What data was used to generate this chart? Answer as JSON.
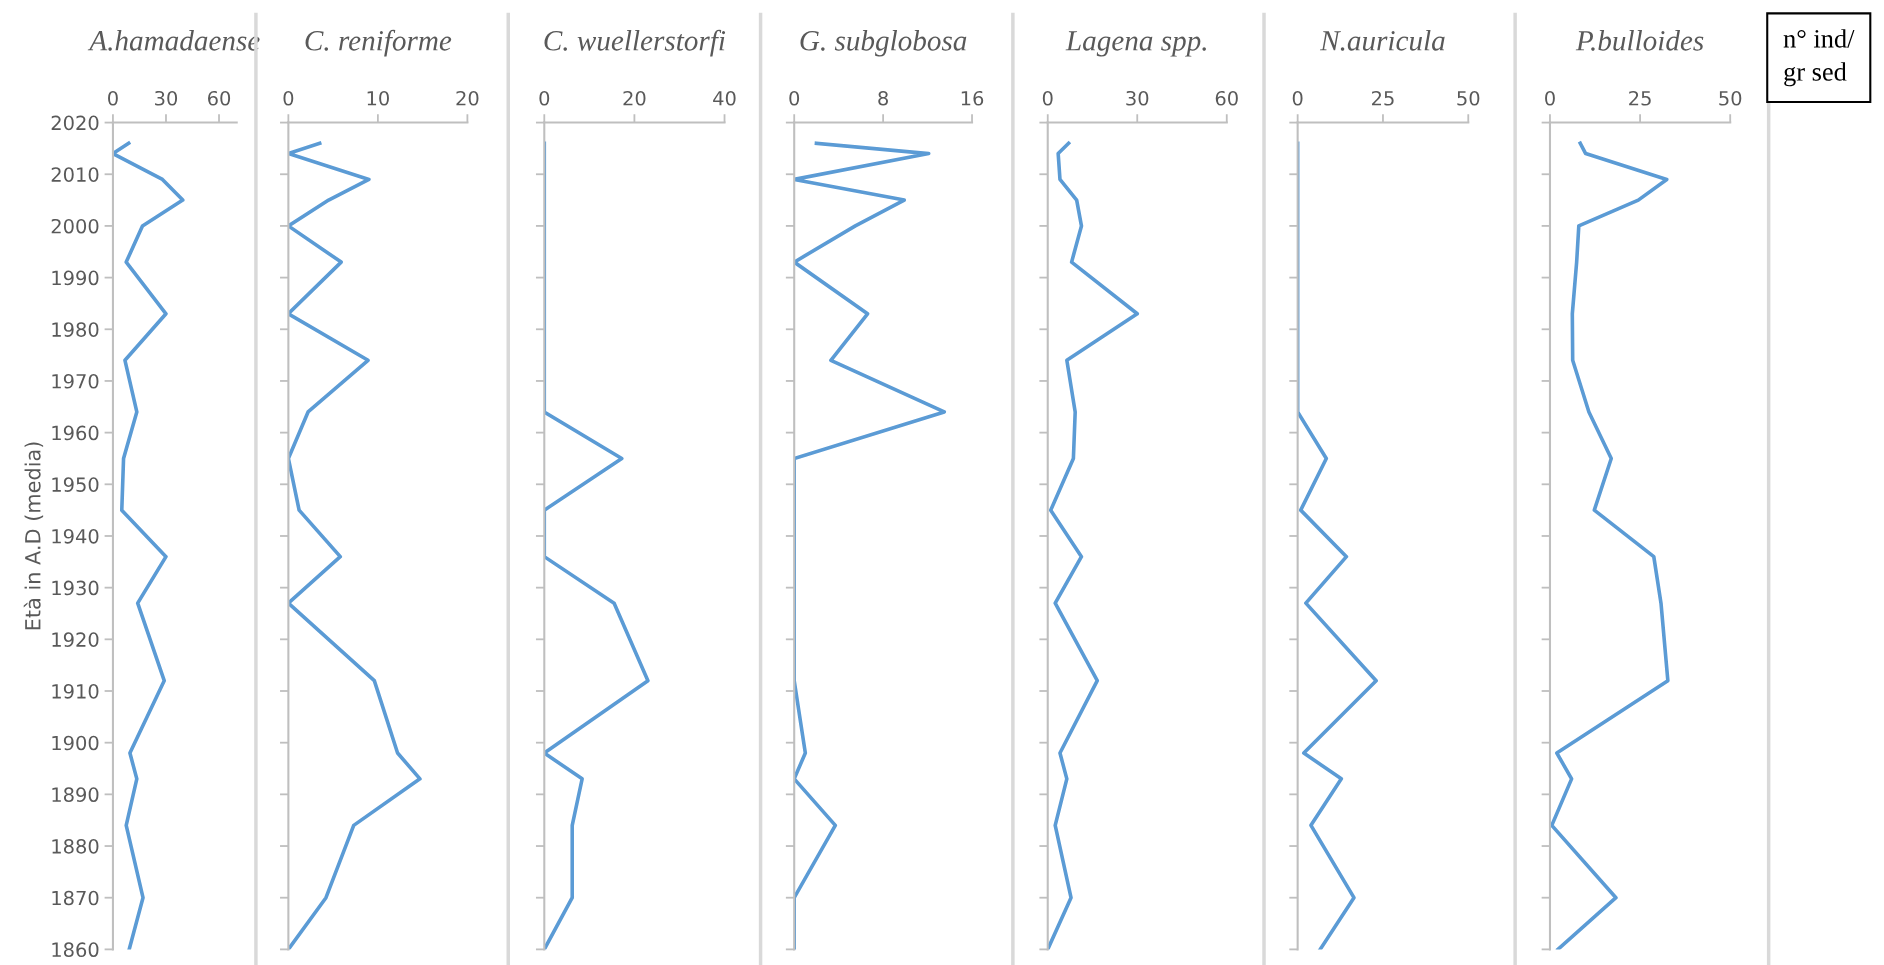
{
  "chart_data": [
    {
      "type": "line",
      "orientation": "horizontal",
      "title": "A.hamadaense",
      "ylabel": "Età in A.D (media)",
      "x": [
        2016,
        2014,
        2009,
        2005,
        2000,
        1993,
        1983,
        1974,
        1964,
        1955,
        1945,
        1936,
        1927,
        1912,
        1898,
        1893,
        1884,
        1870,
        1860
      ],
      "series": [
        {
          "color": "#5b9bd5",
          "values": [
            8.9,
            0,
            28,
            39.5,
            16.7,
            7.5,
            30,
            6.8,
            13.5,
            6,
            5,
            30,
            14,
            29,
            9.6,
            13.5,
            7.5,
            17,
            9.2
          ]
        }
      ],
      "xlim": [
        0,
        70
      ],
      "xticks": [
        0,
        30,
        60
      ],
      "ylim": [
        1860,
        2020
      ],
      "yticks": [
        1860,
        1870,
        1880,
        1890,
        1900,
        1910,
        1920,
        1930,
        1940,
        1950,
        1960,
        1970,
        1980,
        1990,
        2000,
        2010,
        2020
      ],
      "grid": false
    },
    {
      "type": "line",
      "orientation": "horizontal",
      "title": "C. reniforme",
      "x": [
        2016,
        2014,
        2009,
        2005,
        2000,
        1993,
        1983,
        1974,
        1964,
        1955,
        1945,
        1936,
        1927,
        1912,
        1898,
        1893,
        1884,
        1870,
        1860
      ],
      "series": [
        {
          "color": "#5b9bd5",
          "values": [
            3.5,
            0,
            9,
            4.5,
            0,
            5.9,
            0,
            8.9,
            2.2,
            0,
            1.2,
            5.8,
            0,
            9.6,
            12.2,
            14.7,
            7.3,
            4.2,
            0
          ]
        }
      ],
      "xlim": [
        0,
        20
      ],
      "xticks": [
        0,
        10,
        20
      ],
      "ylim": [
        1860,
        2020
      ],
      "yticks": [
        1860,
        1870,
        1880,
        1890,
        1900,
        1910,
        1920,
        1930,
        1940,
        1950,
        1960,
        1970,
        1980,
        1990,
        2000,
        2010,
        2020
      ],
      "tick_labels": "x",
      "grid": false
    },
    {
      "type": "line",
      "orientation": "horizontal",
      "title": "C. wuellerstorfi",
      "x": [
        2016,
        2014,
        2009,
        2005,
        2000,
        1993,
        1983,
        1974,
        1964,
        1955,
        1945,
        1936,
        1927,
        1912,
        1898,
        1893,
        1884,
        1870,
        1860
      ],
      "series": [
        {
          "color": "#5b9bd5",
          "values": [
            0,
            0,
            0,
            0,
            0,
            0,
            0,
            0,
            0,
            17.2,
            0,
            0,
            15.5,
            23,
            0,
            8.4,
            6.2,
            6.2,
            0
          ]
        }
      ],
      "xlim": [
        0,
        40
      ],
      "xticks": [
        0,
        20,
        40
      ],
      "ylim": [
        1860,
        2020
      ],
      "yticks": [
        1860,
        1870,
        1880,
        1890,
        1900,
        1910,
        1920,
        1930,
        1940,
        1950,
        1960,
        1970,
        1980,
        1990,
        2000,
        2010,
        2020
      ],
      "tick_labels": "x",
      "grid": false
    },
    {
      "type": "line",
      "orientation": "horizontal",
      "title": "G. subglobosa",
      "x": [
        2016,
        2014,
        2009,
        2005,
        2000,
        1993,
        1983,
        1974,
        1964,
        1955,
        1945,
        1936,
        1927,
        1912,
        1898,
        1893,
        1884,
        1870,
        1860
      ],
      "series": [
        {
          "color": "#5b9bd5",
          "values": [
            2,
            12.1,
            0,
            9.9,
            5.5,
            0,
            6.6,
            3.3,
            13.5,
            0,
            0,
            0,
            0,
            0,
            1,
            0,
            3.7,
            0,
            0
          ]
        }
      ],
      "xlim": [
        0,
        16
      ],
      "xticks": [
        0,
        8,
        16
      ],
      "ylim": [
        1860,
        2020
      ],
      "yticks": [
        1860,
        1870,
        1880,
        1890,
        1900,
        1910,
        1920,
        1930,
        1940,
        1950,
        1960,
        1970,
        1980,
        1990,
        2000,
        2010,
        2020
      ],
      "tick_labels": "x",
      "grid": false
    },
    {
      "type": "line",
      "orientation": "horizontal",
      "title": "Lagena spp.",
      "x": [
        2016,
        2014,
        2009,
        2005,
        2000,
        1993,
        1983,
        1974,
        1964,
        1955,
        1945,
        1936,
        1927,
        1912,
        1898,
        1893,
        1884,
        1870,
        1860
      ],
      "series": [
        {
          "color": "#5b9bd5",
          "values": [
            7,
            3.5,
            4.1,
            9.7,
            11.3,
            8,
            30,
            6.4,
            9.2,
            8.6,
            1,
            11.3,
            2.5,
            16.6,
            4.1,
            6.4,
            2.5,
            7.8,
            0
          ]
        }
      ],
      "xlim": [
        0,
        60
      ],
      "xticks": [
        0,
        30,
        60
      ],
      "ylim": [
        1860,
        2020
      ],
      "yticks": [
        1860,
        1870,
        1880,
        1890,
        1900,
        1910,
        1920,
        1930,
        1940,
        1950,
        1960,
        1970,
        1980,
        1990,
        2000,
        2010,
        2020
      ],
      "tick_labels": "x",
      "grid": false
    },
    {
      "type": "line",
      "orientation": "horizontal",
      "title": "N.auricula",
      "x": [
        2016,
        2014,
        2009,
        2005,
        2000,
        1993,
        1983,
        1974,
        1964,
        1955,
        1945,
        1936,
        1927,
        1912,
        1898,
        1893,
        1884,
        1870,
        1860
      ],
      "series": [
        {
          "color": "#5b9bd5",
          "values": [
            0,
            0,
            0,
            0,
            0,
            0,
            0,
            0,
            0,
            8.4,
            0.9,
            14.3,
            2.4,
            23,
            1.8,
            12.8,
            3.9,
            16.5,
            6.6
          ]
        }
      ],
      "xlim": [
        0,
        50
      ],
      "xticks": [
        0,
        25,
        50
      ],
      "ylim": [
        1860,
        2020
      ],
      "yticks": [
        1860,
        1870,
        1880,
        1890,
        1900,
        1910,
        1920,
        1930,
        1940,
        1950,
        1960,
        1970,
        1980,
        1990,
        2000,
        2010,
        2020
      ],
      "tick_labels": "x",
      "grid": false
    },
    {
      "type": "line",
      "orientation": "horizontal",
      "title": "P.bulloides",
      "x": [
        2016,
        2014,
        2009,
        2005,
        2000,
        1993,
        1983,
        1974,
        1964,
        1955,
        1945,
        1936,
        1927,
        1912,
        1898,
        1893,
        1884,
        1870,
        1860
      ],
      "series": [
        {
          "color": "#5b9bd5",
          "values": [
            8.4,
            9.9,
            32.4,
            24.5,
            8,
            7.4,
            6.2,
            6.3,
            10.8,
            17,
            12.3,
            28.8,
            30.8,
            32.7,
            1.9,
            6,
            0.5,
            18.3,
            2.2
          ]
        }
      ],
      "xlim": [
        0,
        50
      ],
      "xticks": [
        0,
        25,
        50
      ],
      "ylim": [
        1860,
        2020
      ],
      "yticks": [
        1860,
        1870,
        1880,
        1890,
        1900,
        1910,
        1920,
        1930,
        1940,
        1950,
        1960,
        1970,
        1980,
        1990,
        2000,
        2010,
        2020
      ],
      "tick_labels": "x",
      "grid": false,
      "annotations": [
        "n° ind/\ngr sed"
      ]
    }
  ]
}
